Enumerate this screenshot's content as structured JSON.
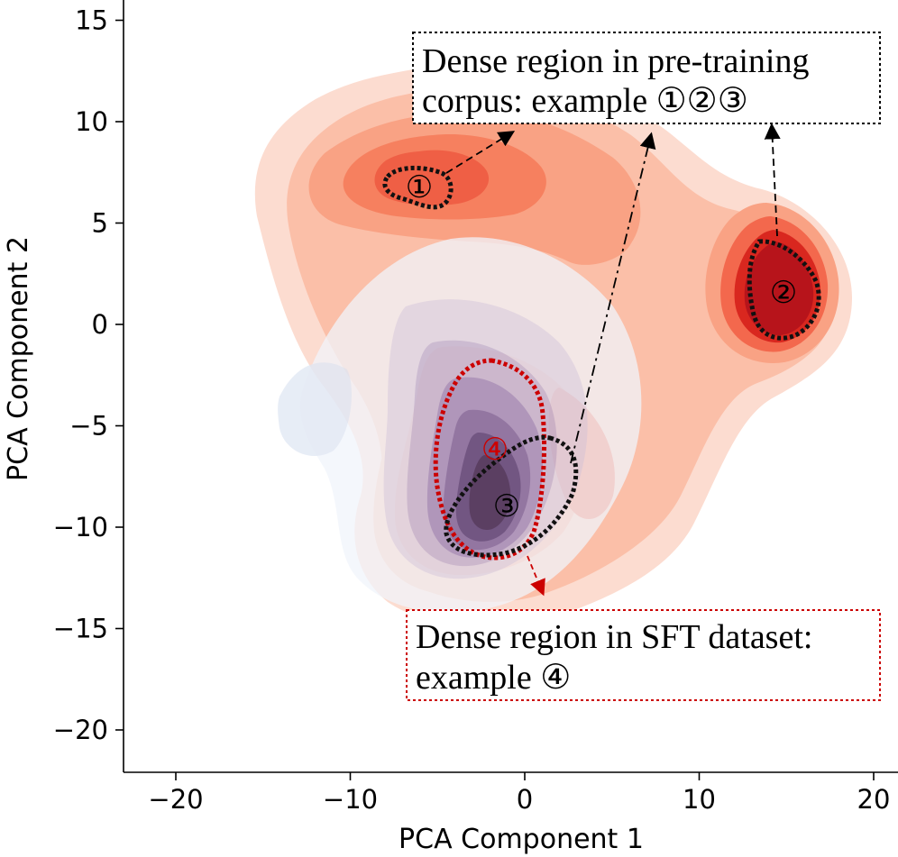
{
  "chart_data": {
    "type": "kde_contour",
    "xlabel": "PCA Component 1",
    "ylabel": "PCA Component 2",
    "xlim": [
      -23,
      21.5
    ],
    "ylim": [
      -22,
      16
    ],
    "xticks": [
      -20,
      -10,
      0,
      10,
      20
    ],
    "yticks": [
      -20,
      -15,
      -10,
      -5,
      0,
      5,
      10,
      15
    ],
    "xtick_labels": [
      "−20",
      "−10",
      "0",
      "10",
      "20"
    ],
    "ytick_labels": [
      "−20",
      "−15",
      "−10",
      "−5",
      "0",
      "5",
      "10",
      "15"
    ],
    "grid": false,
    "series": [
      {
        "colormap": "Reds",
        "base_color": "#c7161d",
        "modes": [
          {
            "x": -6.5,
            "y": 7.2
          },
          {
            "x": 14.5,
            "y": 1.5
          },
          {
            "x": -1,
            "y": -8
          }
        ]
      },
      {
        "colormap": "Purples/Blues",
        "base_color": "#4c3f6b",
        "modes": [
          {
            "x": -1.5,
            "y": -7
          }
        ]
      }
    ],
    "regions": [
      {
        "marker": "①",
        "color": "#000000",
        "x": -6.1,
        "y": 6.9
      },
      {
        "marker": "②",
        "color": "#000000",
        "x": 14.8,
        "y": 1.6
      },
      {
        "marker": "③",
        "color": "#000000",
        "x": -0.8,
        "y": -8.9
      },
      {
        "marker": "④",
        "color": "#cc0000",
        "x": -1.7,
        "y": -6.1
      }
    ],
    "annotations": [
      {
        "lines": [
          "Dense region in pre-training",
          "corpus: example ①②③"
        ],
        "border_color": "#000000"
      },
      {
        "lines": [
          "Dense region in SFT dataset:",
          "example ④"
        ],
        "border_color": "#cc0000"
      }
    ]
  }
}
